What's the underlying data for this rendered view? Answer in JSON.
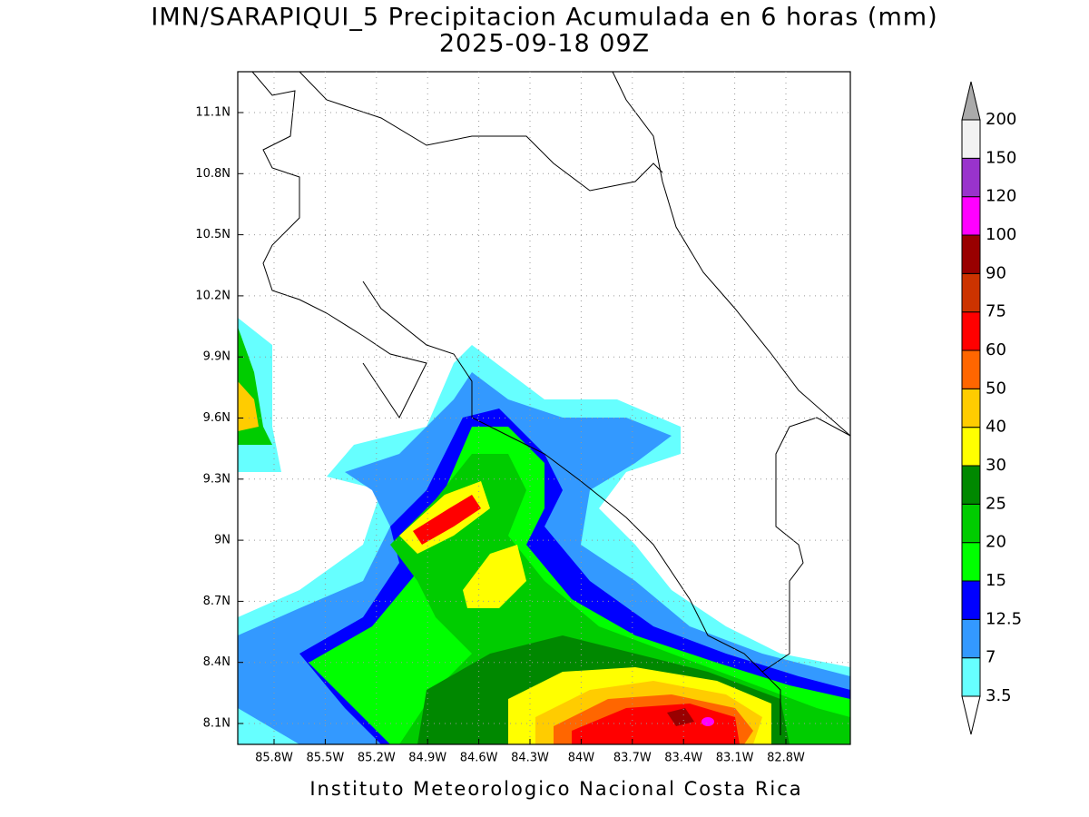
{
  "title": "IMN/SARAPIQUI_5 Precipitacion Acumulada en 6 horas (mm)",
  "subtitle": "2025-09-18 09Z",
  "footer": "Instituto Meteorologico Nacional Costa Rica",
  "map": {
    "lon_ticks": [
      "85.8W",
      "85.5W",
      "85.2W",
      "84.9W",
      "84.6W",
      "84.3W",
      "84W",
      "83.7W",
      "83.4W",
      "83.1W",
      "82.8W"
    ],
    "lat_ticks": [
      "11.1N",
      "10.8N",
      "10.5N",
      "10.2N",
      "9.9N",
      "9.6N",
      "9.3N",
      "9N",
      "8.7N",
      "8.4N",
      "8.1N"
    ]
  },
  "colorbar": {
    "levels": [
      3.5,
      7,
      12.5,
      15,
      20,
      25,
      30,
      40,
      50,
      60,
      75,
      90,
      100,
      120,
      150,
      200
    ],
    "colors": [
      "#66ffff",
      "#3399ff",
      "#0000ff",
      "#00ff00",
      "#00cc00",
      "#008800",
      "#ffff00",
      "#ffcc00",
      "#ff6600",
      "#ff0000",
      "#cc3300",
      "#990000",
      "#ff00ff",
      "#9933cc",
      "#f2f2f2"
    ],
    "below_color": "#ffffff",
    "above_color": "#aaaaaa"
  }
}
